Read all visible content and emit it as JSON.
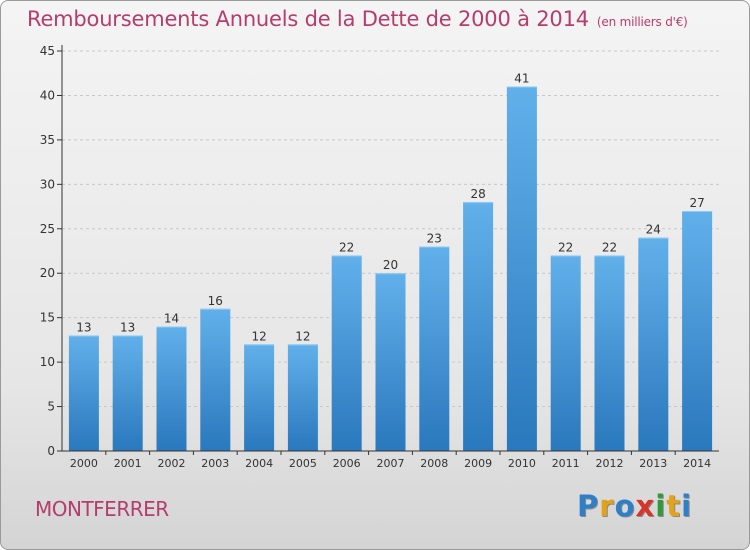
{
  "title": "Remboursements Annuels de la Dette de 2000 à 2014",
  "subtitle": "(en milliers d'€)",
  "commune": "MONTFERRER",
  "brand": {
    "text": "Proxiti",
    "letters": [
      {
        "char": "P",
        "color": "#2f7fc8"
      },
      {
        "char": "r",
        "color": "#e2a21a"
      },
      {
        "char": "o",
        "color": "#2f7fc8"
      },
      {
        "char": "x",
        "color": "#d8352a"
      },
      {
        "char": "i",
        "color": "#2f9a3a"
      },
      {
        "char": "t",
        "color": "#e2a21a"
      },
      {
        "char": "i",
        "color": "#2f7fc8"
      }
    ]
  },
  "colors": {
    "title": "#b53d6c",
    "bar_top": "#62b0ea",
    "bar_bottom": "#2a78bd",
    "grid": "#c8c8c8",
    "axis": "#333333"
  },
  "chart_data": {
    "type": "bar",
    "title": "Remboursements Annuels de la Dette de 2000 à 2014",
    "subtitle": "(en milliers d'€)",
    "xlabel": "",
    "ylabel": "",
    "categories": [
      "2000",
      "2001",
      "2002",
      "2003",
      "2004",
      "2005",
      "2006",
      "2007",
      "2008",
      "2009",
      "2010",
      "2011",
      "2012",
      "2013",
      "2014"
    ],
    "values": [
      13,
      13,
      14,
      16,
      12,
      12,
      22,
      20,
      23,
      28,
      41,
      22,
      22,
      24,
      27
    ],
    "data_labels": [
      "13",
      "13",
      "14",
      "16",
      "12",
      "12",
      "22",
      "20",
      "23",
      "28",
      "41",
      "22",
      "22",
      "24",
      "27"
    ],
    "ylim": [
      0,
      45
    ],
    "yticks": [
      0,
      5,
      10,
      15,
      20,
      25,
      30,
      35,
      40,
      45
    ],
    "ytick_labels": [
      "0",
      "5",
      "10",
      "15",
      "20",
      "25",
      "30",
      "35",
      "40",
      "45"
    ],
    "grid": true,
    "legend": "none"
  }
}
